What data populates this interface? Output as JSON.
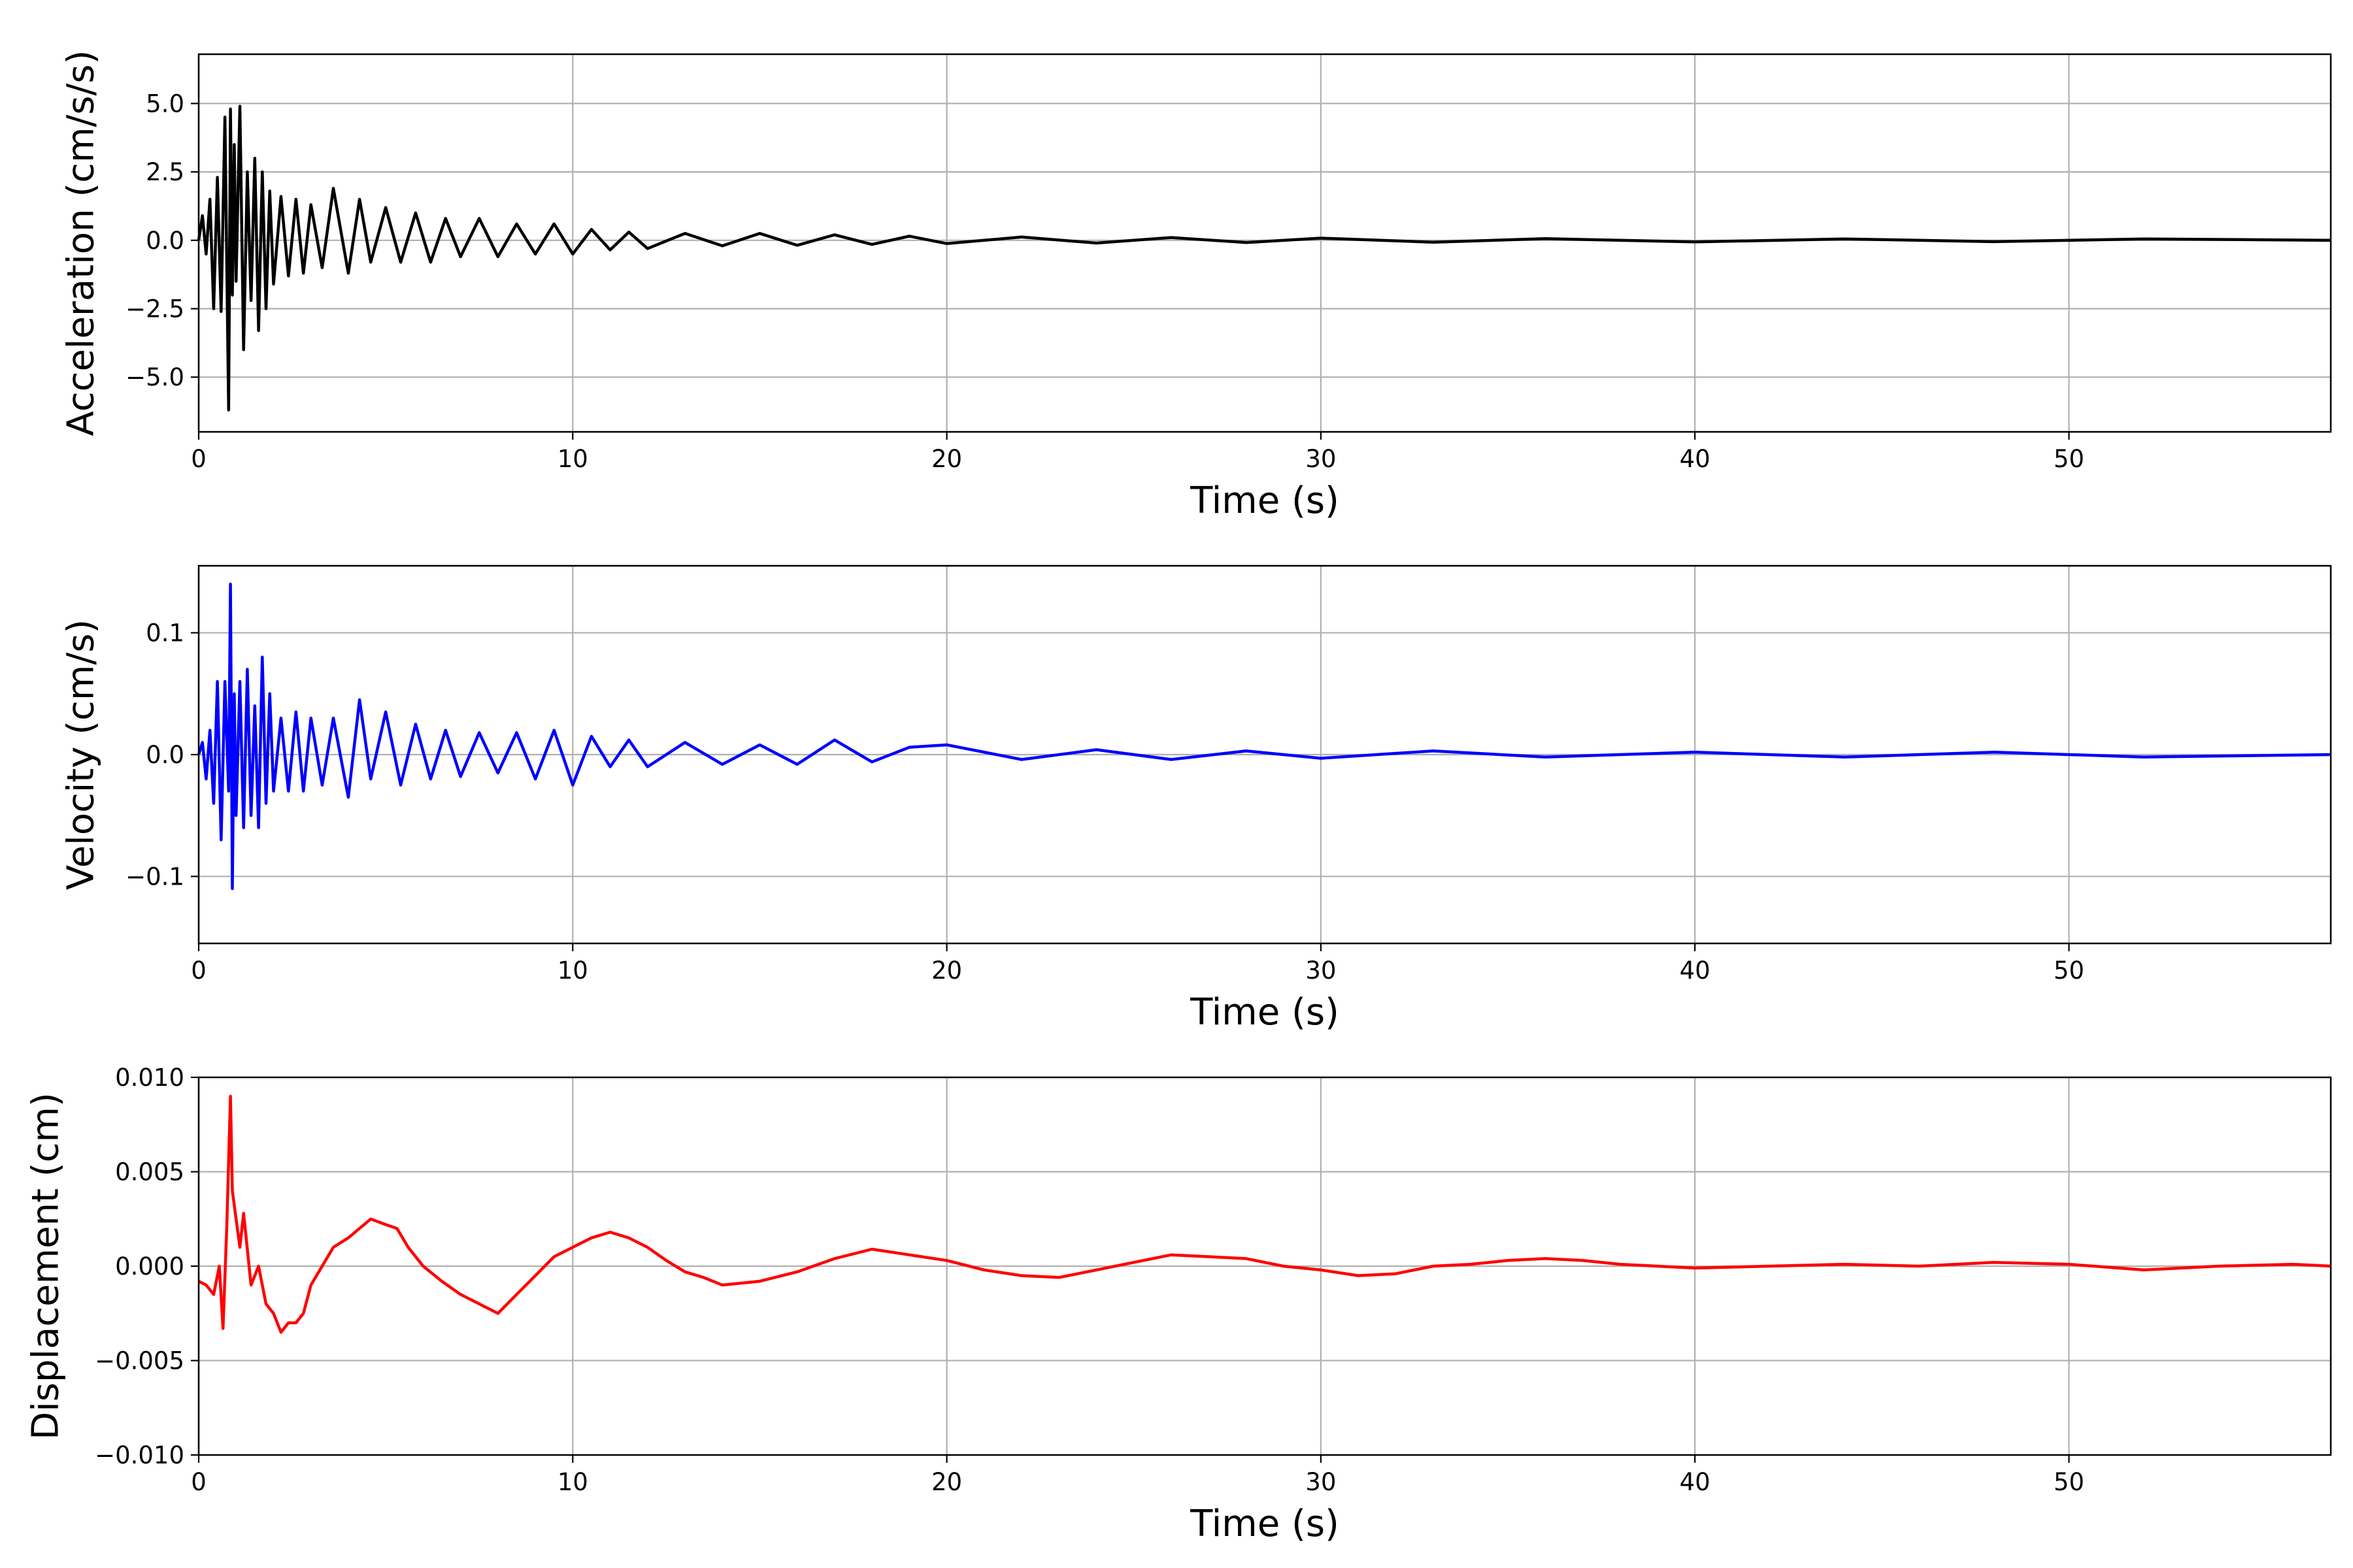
{
  "chart_data": [
    {
      "type": "line",
      "xlabel": "Time (s)",
      "ylabel": "Acceleration (cm/s/s)",
      "xlim": [
        0,
        57
      ],
      "ylim": [
        -7.0,
        6.8
      ],
      "xticks": [
        0,
        10,
        20,
        30,
        40,
        50
      ],
      "yticks": [
        -5.0,
        -2.5,
        0.0,
        2.5,
        5.0
      ],
      "xtick_labels": [
        "0",
        "10",
        "20",
        "30",
        "40",
        "50"
      ],
      "ytick_labels": [
        "−5.0",
        "−2.5",
        "0.0",
        "2.5",
        "5.0"
      ],
      "grid": true,
      "color": "#000000",
      "series": [
        {
          "x": [
            0,
            0.1,
            0.2,
            0.3,
            0.4,
            0.5,
            0.6,
            0.7,
            0.8,
            0.85,
            0.9,
            0.95,
            1.0,
            1.1,
            1.2,
            1.3,
            1.4,
            1.5,
            1.6,
            1.7,
            1.8,
            1.9,
            2.0,
            2.2,
            2.4,
            2.6,
            2.8,
            3.0,
            3.3,
            3.6,
            4.0,
            4.3,
            4.6,
            5.0,
            5.4,
            5.8,
            6.2,
            6.6,
            7.0,
            7.5,
            8.0,
            8.5,
            9.0,
            9.5,
            10.0,
            10.5,
            11.0,
            11.5,
            12.0,
            13.0,
            14.0,
            15.0,
            16.0,
            17.0,
            18.0,
            19.0,
            20.0,
            22.0,
            24.0,
            26.0,
            28.0,
            30.0,
            33.0,
            36.0,
            40.0,
            44.0,
            48.0,
            52.0,
            57.0
          ],
          "y": [
            0.0,
            0.9,
            -0.5,
            1.5,
            -2.5,
            2.3,
            -2.6,
            4.5,
            -6.2,
            4.8,
            -2.0,
            3.5,
            -1.5,
            4.9,
            -4.0,
            2.5,
            -2.2,
            3.0,
            -3.3,
            2.5,
            -2.5,
            1.8,
            -1.6,
            1.6,
            -1.3,
            1.5,
            -1.2,
            1.3,
            -1.0,
            1.9,
            -1.2,
            1.5,
            -0.8,
            1.2,
            -0.8,
            1.0,
            -0.8,
            0.8,
            -0.6,
            0.8,
            -0.6,
            0.6,
            -0.5,
            0.6,
            -0.5,
            0.4,
            -0.35,
            0.3,
            -0.3,
            0.25,
            -0.2,
            0.25,
            -0.18,
            0.2,
            -0.15,
            0.15,
            -0.12,
            0.12,
            -0.1,
            0.1,
            -0.08,
            0.08,
            -0.07,
            0.06,
            -0.06,
            0.05,
            -0.05,
            0.05,
            0.0
          ]
        }
      ]
    },
    {
      "type": "line",
      "xlabel": "Time (s)",
      "ylabel": "Velocity (cm/s)",
      "xlim": [
        0,
        57
      ],
      "ylim": [
        -0.155,
        0.155
      ],
      "xticks": [
        0,
        10,
        20,
        30,
        40,
        50
      ],
      "yticks": [
        -0.1,
        0.0,
        0.1
      ],
      "xtick_labels": [
        "0",
        "10",
        "20",
        "30",
        "40",
        "50"
      ],
      "ytick_labels": [
        "−0.1",
        "0.0",
        "0.1"
      ],
      "grid": true,
      "color": "#0000ff",
      "series": [
        {
          "x": [
            0,
            0.1,
            0.2,
            0.3,
            0.4,
            0.5,
            0.6,
            0.7,
            0.8,
            0.85,
            0.9,
            0.95,
            1.0,
            1.1,
            1.2,
            1.3,
            1.4,
            1.5,
            1.6,
            1.7,
            1.8,
            1.9,
            2.0,
            2.2,
            2.4,
            2.6,
            2.8,
            3.0,
            3.3,
            3.6,
            4.0,
            4.3,
            4.6,
            5.0,
            5.4,
            5.8,
            6.2,
            6.6,
            7.0,
            7.5,
            8.0,
            8.5,
            9.0,
            9.5,
            10.0,
            10.5,
            11.0,
            11.5,
            12.0,
            13.0,
            14.0,
            15.0,
            16.0,
            17.0,
            18.0,
            19.0,
            20.0,
            22.0,
            24.0,
            26.0,
            28.0,
            30.0,
            33.0,
            36.0,
            40.0,
            44.0,
            48.0,
            52.0,
            57.0
          ],
          "y": [
            0.0,
            0.01,
            -0.02,
            0.02,
            -0.04,
            0.06,
            -0.07,
            0.06,
            -0.03,
            0.14,
            -0.11,
            0.05,
            -0.05,
            0.06,
            -0.06,
            0.07,
            -0.05,
            0.04,
            -0.06,
            0.08,
            -0.04,
            0.05,
            -0.03,
            0.03,
            -0.03,
            0.035,
            -0.03,
            0.03,
            -0.025,
            0.03,
            -0.035,
            0.045,
            -0.02,
            0.035,
            -0.025,
            0.025,
            -0.02,
            0.02,
            -0.018,
            0.018,
            -0.015,
            0.018,
            -0.02,
            0.02,
            -0.025,
            0.015,
            -0.01,
            0.012,
            -0.01,
            0.01,
            -0.008,
            0.008,
            -0.008,
            0.012,
            -0.006,
            0.006,
            0.008,
            -0.004,
            0.004,
            -0.004,
            0.003,
            -0.003,
            0.003,
            -0.002,
            0.002,
            -0.002,
            0.002,
            -0.002,
            0.0
          ]
        }
      ]
    },
    {
      "type": "line",
      "xlabel": "Time (s)",
      "ylabel": "Displacement (cm)",
      "xlim": [
        0,
        57
      ],
      "ylim": [
        -0.01,
        0.01
      ],
      "xticks": [
        0,
        10,
        20,
        30,
        40,
        50
      ],
      "yticks": [
        -0.01,
        -0.005,
        0.0,
        0.005,
        0.01
      ],
      "xtick_labels": [
        "0",
        "10",
        "20",
        "30",
        "40",
        "50"
      ],
      "ytick_labels": [
        "−0.010",
        "−0.005",
        "0.000",
        "0.005",
        "0.010"
      ],
      "grid": true,
      "color": "#ff0000",
      "series": [
        {
          "x": [
            0,
            0.2,
            0.4,
            0.55,
            0.65,
            0.75,
            0.85,
            0.9,
            1.0,
            1.1,
            1.2,
            1.4,
            1.6,
            1.8,
            2.0,
            2.2,
            2.4,
            2.6,
            2.8,
            3.0,
            3.3,
            3.6,
            4.0,
            4.3,
            4.6,
            5.0,
            5.3,
            5.6,
            6.0,
            6.5,
            7.0,
            7.5,
            8.0,
            8.5,
            9.0,
            9.5,
            10.0,
            10.5,
            11.0,
            11.5,
            12.0,
            12.5,
            13.0,
            13.5,
            14.0,
            14.5,
            15.0,
            16.0,
            17.0,
            18.0,
            19.0,
            20.0,
            21.0,
            22.0,
            23.0,
            24.0,
            25.0,
            26.0,
            27.0,
            28.0,
            29.0,
            30.0,
            31.0,
            32.0,
            33.0,
            34.0,
            35.0,
            36.0,
            37.0,
            38.0,
            40.0,
            42.0,
            44.0,
            46.0,
            48.0,
            50.0,
            52.0,
            54.0,
            56.0,
            57.0
          ],
          "y": [
            -0.0008,
            -0.001,
            -0.0015,
            0.0,
            -0.0033,
            0.002,
            0.009,
            0.004,
            0.0025,
            0.001,
            0.0028,
            -0.001,
            0.0,
            -0.002,
            -0.0025,
            -0.0035,
            -0.003,
            -0.003,
            -0.0025,
            -0.001,
            0.0,
            0.001,
            0.0015,
            0.002,
            0.0025,
            0.0022,
            0.002,
            0.001,
            0.0,
            -0.0008,
            -0.0015,
            -0.002,
            -0.0025,
            -0.0015,
            -0.0005,
            0.0005,
            0.001,
            0.0015,
            0.0018,
            0.0015,
            0.001,
            0.0003,
            -0.0003,
            -0.0006,
            -0.001,
            -0.0009,
            -0.0008,
            -0.0003,
            0.0004,
            0.0009,
            0.0006,
            0.0003,
            -0.0002,
            -0.0005,
            -0.0006,
            -0.0002,
            0.0002,
            0.0006,
            0.0005,
            0.0004,
            0.0,
            -0.0002,
            -0.0005,
            -0.0004,
            0.0,
            0.0001,
            0.0003,
            0.0004,
            0.0003,
            0.0001,
            -0.0001,
            0.0,
            0.0001,
            0.0,
            0.0002,
            0.0001,
            -0.0002,
            0.0,
            0.0001,
            0.0
          ]
        }
      ]
    }
  ]
}
